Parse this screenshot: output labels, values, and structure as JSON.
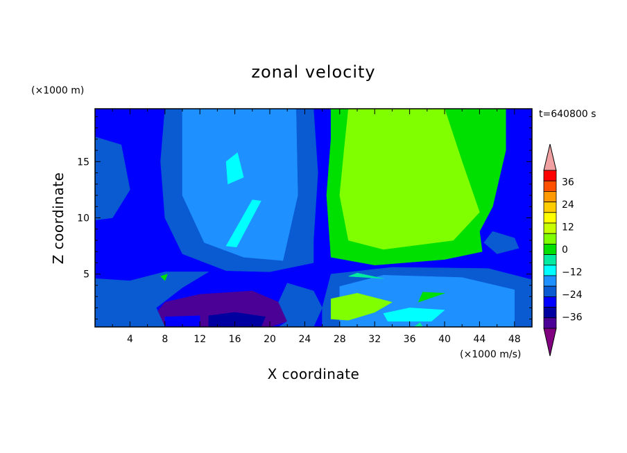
{
  "chart_data": {
    "type": "heatmap",
    "title": "zonal velocity",
    "xlabel": "X coordinate",
    "ylabel": "Z coordinate",
    "x_unit": "(×1000 m/s)",
    "y_unit": "(×1000 m)",
    "time_label": "t=640800 s",
    "xlim": [
      0,
      50
    ],
    "ylim": [
      0.3,
      19.7
    ],
    "x_ticks": [
      "4",
      "8",
      "12",
      "16",
      "20",
      "24",
      "28",
      "32",
      "36",
      "40",
      "44",
      "48"
    ],
    "y_ticks": [
      "5",
      "10",
      "15"
    ],
    "colorbar": {
      "levels": [
        -42,
        -36,
        -30,
        -24,
        -18,
        -12,
        -6,
        0,
        6,
        12,
        18,
        24,
        30,
        36,
        42
      ],
      "tick_labels": [
        "36",
        "24",
        "12",
        "0",
        "−12",
        "−24",
        "−36"
      ],
      "colors": [
        "#800080",
        "#4b0096",
        "#0000a0",
        "#0000ff",
        "#0a5ad2",
        "#1e90ff",
        "#00ffff",
        "#00eaa0",
        "#00e000",
        "#7fff00",
        "#c8ff00",
        "#ffff00",
        "#ffcc00",
        "#ff9900",
        "#ff5000",
        "#ff0000",
        "#f0a0a0"
      ]
    },
    "field": {
      "background": 3,
      "regions": [
        {
          "v": 1,
          "c": [
            [
              12,
              0.3
            ],
            [
              20,
              0.3
            ],
            [
              22,
              0.8
            ],
            [
              21,
              2.5
            ],
            [
              18,
              3.5
            ],
            [
              12,
              3.2
            ],
            [
              8,
              2.5
            ],
            [
              7,
              1.5
            ],
            [
              8,
              0.3
            ]
          ]
        },
        {
          "v": 2,
          "c": [
            [
              13,
              0.3
            ],
            [
              19,
              0.3
            ],
            [
              19.5,
              1.2
            ],
            [
              16,
              1.6
            ],
            [
              13,
              1.3
            ]
          ]
        },
        {
          "v": 2,
          "c": [
            [
              30.5,
              9.2
            ],
            [
              33,
              8.6
            ],
            [
              34,
              9.6
            ],
            [
              32,
              10.1
            ]
          ]
        },
        {
          "v": 2,
          "c": [
            [
              39.2,
              9.8
            ],
            [
              40.3,
              9.6
            ],
            [
              39.8,
              10.4
            ]
          ]
        },
        {
          "v": 3,
          "c": [
            [
              8,
              0.3
            ],
            [
              12,
              0.3
            ],
            [
              12,
              1.3
            ],
            [
              8,
              1.2
            ]
          ]
        },
        {
          "v": 4,
          "c": [
            [
              0,
              0.3
            ],
            [
              8,
              0.3
            ],
            [
              7,
              2
            ],
            [
              10,
              3.8
            ],
            [
              13,
              5.2
            ],
            [
              8,
              5.2
            ],
            [
              4,
              4.4
            ],
            [
              0,
              4.6
            ]
          ]
        },
        {
          "v": 4,
          "c": [
            [
              21,
              0.3
            ],
            [
              25,
              0.3
            ],
            [
              26,
              2
            ],
            [
              25,
              3.5
            ],
            [
              22,
              4.2
            ],
            [
              21,
              2.5
            ],
            [
              22,
              0.8
            ]
          ]
        },
        {
          "v": 4,
          "c": [
            [
              26,
              0.3
            ],
            [
              50,
              0.3
            ],
            [
              50,
              4.5
            ],
            [
              45,
              5.5
            ],
            [
              34,
              5.6
            ],
            [
              27,
              5
            ],
            [
              26,
              2
            ]
          ]
        },
        {
          "v": 4,
          "c": [
            [
              8,
              19.7
            ],
            [
              25,
              19.7
            ],
            [
              25.5,
              14
            ],
            [
              25,
              8
            ],
            [
              25,
              6
            ],
            [
              20,
              5.2
            ],
            [
              15,
              5.3
            ],
            [
              10,
              6.8
            ],
            [
              8,
              10
            ],
            [
              7.5,
              15
            ]
          ]
        },
        {
          "v": 4,
          "c": [
            [
              0,
              17.2
            ],
            [
              3,
              16.5
            ],
            [
              4,
              12.5
            ],
            [
              2,
              10
            ],
            [
              0,
              9.8
            ]
          ]
        },
        {
          "v": 4,
          "c": [
            [
              45.5,
              8.8
            ],
            [
              48,
              8.2
            ],
            [
              48.5,
              7.3
            ],
            [
              46,
              6.8
            ],
            [
              44.5,
              7.8
            ]
          ]
        },
        {
          "v": 5,
          "c": [
            [
              28,
              0.3
            ],
            [
              48,
              0.3
            ],
            [
              48,
              3.6
            ],
            [
              42,
              4.7
            ],
            [
              33,
              4.9
            ],
            [
              28,
              3.9
            ]
          ]
        },
        {
          "v": 5,
          "c": [
            [
              10,
              19.7
            ],
            [
              23,
              19.7
            ],
            [
              23.2,
              12
            ],
            [
              21.5,
              6.2
            ],
            [
              17,
              6.5
            ],
            [
              12.5,
              7.8
            ],
            [
              10,
              12
            ],
            [
              10,
              16
            ]
          ]
        },
        {
          "v": 6,
          "c": [
            [
              33.5,
              0.8
            ],
            [
              38.5,
              0.8
            ],
            [
              40,
              1.8
            ],
            [
              36,
              2
            ],
            [
              33,
              1.5
            ]
          ]
        },
        {
          "v": 6,
          "c": [
            [
              15,
              7.5
            ],
            [
              16.2,
              7.4
            ],
            [
              19,
              11.5
            ],
            [
              18,
              11.6
            ]
          ]
        },
        {
          "v": 6,
          "c": [
            [
              15.2,
              13
            ],
            [
              17,
              13.6
            ],
            [
              16.3,
              15.8
            ],
            [
              15,
              15
            ]
          ]
        },
        {
          "v": 7,
          "c": [
            [
              36.5,
              0.3
            ],
            [
              37.5,
              0.3
            ],
            [
              37.2,
              0.7
            ]
          ]
        },
        {
          "v": 8,
          "c": [
            [
              27,
              19.7
            ],
            [
              47,
              19.7
            ],
            [
              47,
              16
            ],
            [
              45.5,
              11
            ],
            [
              44,
              8.8
            ],
            [
              44.3,
              7
            ],
            [
              40,
              6.3
            ],
            [
              32,
              5.8
            ],
            [
              27,
              6.5
            ],
            [
              26.5,
              12
            ],
            [
              27,
              17
            ]
          ]
        },
        {
          "v": 9,
          "c": [
            [
              29,
              19.7
            ],
            [
              40,
              19.7
            ],
            [
              42,
              15
            ],
            [
              44,
              10.5
            ],
            [
              41,
              8
            ],
            [
              33,
              7.2
            ],
            [
              29,
              8
            ],
            [
              28,
              12
            ],
            [
              28.5,
              16
            ]
          ]
        },
        {
          "v": 9,
          "c": [
            [
              27,
              1
            ],
            [
              29,
              0.9
            ],
            [
              32,
              1.6
            ],
            [
              34,
              2.5
            ],
            [
              30,
              3.3
            ],
            [
              27,
              2.8
            ]
          ]
        },
        {
          "v": 8,
          "c": [
            [
              37,
              2.5
            ],
            [
              40,
              3.3
            ],
            [
              37.5,
              3.4
            ]
          ]
        },
        {
          "v": 7,
          "c": [
            [
              29,
              4.8
            ],
            [
              33,
              4.6
            ],
            [
              30,
              5.1
            ]
          ]
        },
        {
          "v": 8,
          "c": [
            [
              7.5,
              4.8
            ],
            [
              8,
              4.4
            ],
            [
              8.3,
              5
            ]
          ]
        }
      ]
    }
  }
}
